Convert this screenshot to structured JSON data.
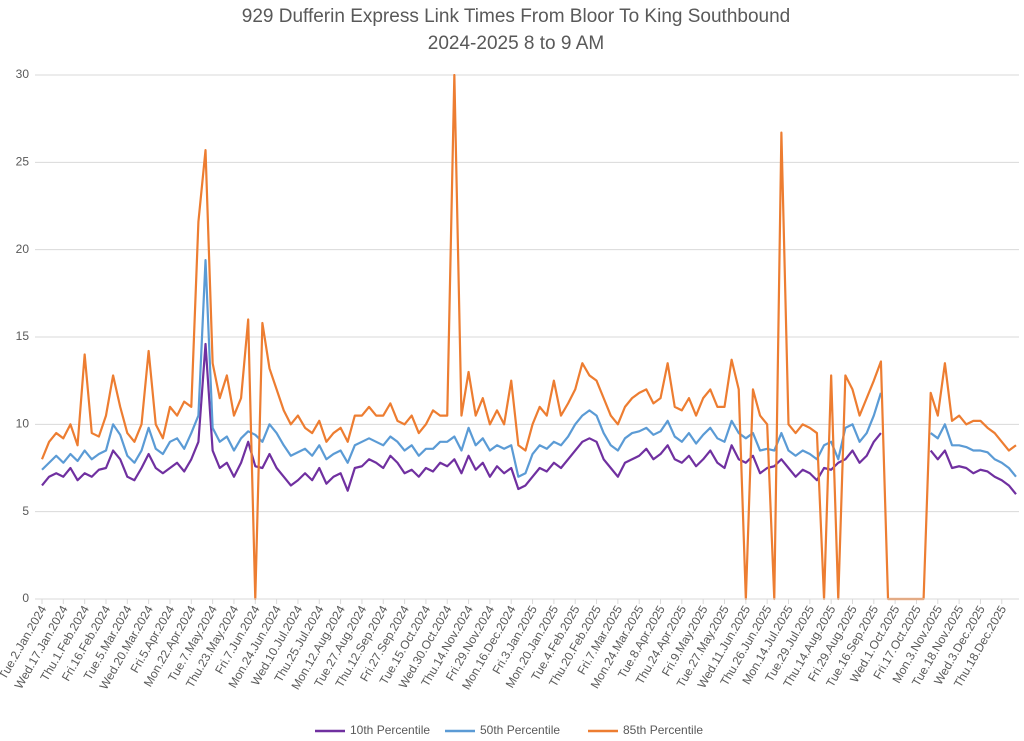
{
  "chart_data": {
    "type": "line",
    "title": "929 Dufferin Express Link Times From Bloor To King Southbound",
    "subtitle": "2024-2025 8 to 9 AM",
    "categories": [
      "Tue.2.Jan.2024",
      null,
      null,
      "Wed.17.Jan.2024",
      null,
      null,
      "Thu.1.Feb.2024",
      null,
      null,
      "Fri.16.Feb.2024",
      null,
      null,
      "Tue.5.Mar.2024",
      null,
      null,
      "Wed.20.Mar.2024",
      null,
      null,
      "Fri.5.Apr.2024",
      null,
      null,
      "Mon.22.Apr.2024",
      null,
      null,
      "Tue.7.May.2024",
      null,
      null,
      "Thu.23.May.2024",
      null,
      null,
      "Fri.7.Jun.2024",
      null,
      null,
      "Mon.24.Jun.2024",
      null,
      null,
      "Wed.10.Jul.2024",
      null,
      null,
      "Thu.25.Jul.2024",
      null,
      null,
      "Mon.12.Aug.2024",
      null,
      null,
      "Tue.27.Aug.2024",
      null,
      null,
      "Thu.12.Sep.2024",
      null,
      null,
      "Fri.27.Sep.2024",
      null,
      null,
      "Tue.15.Oct.2024",
      null,
      null,
      "Wed.30.Oct.2024",
      null,
      null,
      "Thu.14.Nov.2024",
      null,
      null,
      "Fri.29.Nov.2024",
      null,
      null,
      "Mon.16.Dec.2024",
      null,
      null,
      "Fri.3.Jan.2025",
      null,
      null,
      "Mon.20.Jan.2025",
      null,
      null,
      "Tue.4.Feb.2025",
      null,
      null,
      "Thu.20.Feb.2025",
      null,
      null,
      "Fri.7.Mar.2025",
      null,
      null,
      "Mon.24.Mar.2025",
      null,
      null,
      "Tue.8.Apr.2025",
      null,
      null,
      "Thu.24.Apr.2025",
      null,
      null,
      "Fri.9.May.2025",
      null,
      null,
      "Tue.27.May.2025",
      null,
      null,
      "Wed.11.Jun.2025",
      null,
      null,
      "Thu.26.Jun.2025",
      null,
      null,
      "Mon.14.Jul.2025",
      null,
      null,
      "Tue.29.Jul.2025",
      null,
      null,
      "Thu.14.Aug.2025",
      null,
      null,
      "Fri.29.Aug.2025",
      null,
      null,
      "Tue.16.Sep.2025",
      null,
      null,
      "Wed.1.Oct.2025",
      null,
      null,
      "Fri.17.Oct.2025",
      null,
      null,
      "Mon.3.Nov.2025",
      null,
      null,
      "Tue.18.Nov.2025",
      null,
      null,
      "Wed.3.Dec.2025",
      null,
      null,
      "Thu.18.Dec.2025",
      null,
      null
    ],
    "series": [
      {
        "name": "10th Percentile",
        "color": "#7030a0",
        "values": [
          6.5,
          7.0,
          7.2,
          7.0,
          7.5,
          6.8,
          7.2,
          7.0,
          7.4,
          7.5,
          8.5,
          8.0,
          7.0,
          6.8,
          7.5,
          8.3,
          7.5,
          7.2,
          7.5,
          7.8,
          7.3,
          8.0,
          9.0,
          14.6,
          8.5,
          7.5,
          7.8,
          7.0,
          7.8,
          9.0,
          7.6,
          7.5,
          8.3,
          7.5,
          7.0,
          6.5,
          6.8,
          7.2,
          6.8,
          7.5,
          6.6,
          7.0,
          7.2,
          6.2,
          7.5,
          7.6,
          8.0,
          7.8,
          7.5,
          8.2,
          7.8,
          7.2,
          7.4,
          7.0,
          7.5,
          7.3,
          7.8,
          7.6,
          8.0,
          7.2,
          8.2,
          7.4,
          7.8,
          7.0,
          7.6,
          7.2,
          7.5,
          6.3,
          6.5,
          7.0,
          7.5,
          7.3,
          7.8,
          7.5,
          8.0,
          8.5,
          9.0,
          9.2,
          9.0,
          8.0,
          7.5,
          7.0,
          7.8,
          8.0,
          8.2,
          8.6,
          8.0,
          8.3,
          8.8,
          8.0,
          7.8,
          8.2,
          7.6,
          8.0,
          8.5,
          7.8,
          7.5,
          8.8,
          8.0,
          7.8,
          8.2,
          7.2,
          7.5,
          7.6,
          8.0,
          7.5,
          7.0,
          7.4,
          7.2,
          6.8,
          7.5,
          7.4,
          7.8,
          8.0,
          8.5,
          7.8,
          8.2,
          9.0,
          9.5,
          null,
          null,
          null,
          null,
          null,
          null,
          8.5,
          8.0,
          8.5,
          7.5,
          7.6,
          7.5,
          7.2,
          7.4,
          7.3,
          7.0,
          6.8,
          6.5,
          6.0
        ]
      },
      {
        "name": "50th Percentile",
        "color": "#5b9bd5",
        "values": [
          7.4,
          7.8,
          8.2,
          7.8,
          8.3,
          7.9,
          8.5,
          8.0,
          8.3,
          8.5,
          10.0,
          9.4,
          8.2,
          7.8,
          8.5,
          9.8,
          8.6,
          8.3,
          9.0,
          9.2,
          8.6,
          9.5,
          10.5,
          19.4,
          9.8,
          9.0,
          9.3,
          8.5,
          9.2,
          9.6,
          9.4,
          9.0,
          10.0,
          9.5,
          8.8,
          8.2,
          8.4,
          8.6,
          8.2,
          8.8,
          8.0,
          8.3,
          8.5,
          7.8,
          8.8,
          9.0,
          9.2,
          9.0,
          8.8,
          9.3,
          9.0,
          8.5,
          8.8,
          8.2,
          8.6,
          8.6,
          9.0,
          9.0,
          9.3,
          8.5,
          9.8,
          8.8,
          9.2,
          8.5,
          8.8,
          8.6,
          8.8,
          7.0,
          7.2,
          8.3,
          8.8,
          8.6,
          9.0,
          8.8,
          9.3,
          10.0,
          10.5,
          10.8,
          10.5,
          9.5,
          8.8,
          8.5,
          9.2,
          9.5,
          9.6,
          9.8,
          9.4,
          9.6,
          10.2,
          9.3,
          9.0,
          9.5,
          8.9,
          9.4,
          9.8,
          9.2,
          9.0,
          10.2,
          9.5,
          9.2,
          9.5,
          8.5,
          8.6,
          8.5,
          9.5,
          8.5,
          8.2,
          8.5,
          8.3,
          8.0,
          8.8,
          9.0,
          8.0,
          9.8,
          10.0,
          9.0,
          9.5,
          10.5,
          11.8,
          null,
          null,
          null,
          null,
          null,
          null,
          9.5,
          9.2,
          10.0,
          8.8,
          8.8,
          8.7,
          8.5,
          8.5,
          8.4,
          8.0,
          7.8,
          7.5,
          7.0
        ]
      },
      {
        "name": "85th Percentile",
        "color": "#ed7d31",
        "values": [
          8.0,
          9.0,
          9.5,
          9.2,
          10.0,
          8.8,
          14.0,
          9.5,
          9.3,
          10.5,
          12.8,
          11.0,
          9.5,
          9.0,
          10.0,
          14.2,
          10.0,
          9.2,
          11.0,
          10.5,
          11.3,
          11.0,
          21.6,
          25.7,
          13.5,
          11.5,
          12.8,
          10.5,
          11.5,
          16.0,
          0,
          15.8,
          13.2,
          12.0,
          10.8,
          10.0,
          10.5,
          9.8,
          9.5,
          10.2,
          9.0,
          9.5,
          9.8,
          9.0,
          10.5,
          10.5,
          11.0,
          10.5,
          10.5,
          11.2,
          10.2,
          10.0,
          10.5,
          9.5,
          10.0,
          10.8,
          10.5,
          10.5,
          30,
          10.5,
          13.0,
          10.5,
          11.5,
          10.0,
          10.8,
          10.0,
          12.5,
          8.8,
          8.5,
          10.0,
          11.0,
          10.5,
          12.5,
          10.5,
          11.2,
          12.0,
          13.5,
          12.8,
          12.5,
          11.5,
          10.5,
          10.0,
          11.0,
          11.5,
          11.8,
          12.0,
          11.2,
          11.5,
          13.5,
          11.0,
          10.8,
          11.5,
          10.5,
          11.5,
          12.0,
          11.0,
          11.0,
          13.7,
          12.0,
          0,
          12.0,
          10.5,
          10.0,
          0,
          26.7,
          10.0,
          9.5,
          10.0,
          9.8,
          9.5,
          0,
          12.8,
          0,
          12.8,
          12.0,
          10.5,
          11.5,
          12.5,
          13.6,
          0,
          0,
          0,
          0,
          0,
          0,
          11.8,
          10.5,
          13.5,
          10.2,
          10.5,
          10.0,
          10.2,
          10.2,
          9.8,
          9.5,
          9.0,
          8.5,
          8.8
        ]
      }
    ],
    "ylim": [
      0,
      30
    ],
    "yticks": [
      0,
      5,
      10,
      15,
      20,
      25,
      30
    ],
    "grid": true,
    "legend": "bottom"
  }
}
